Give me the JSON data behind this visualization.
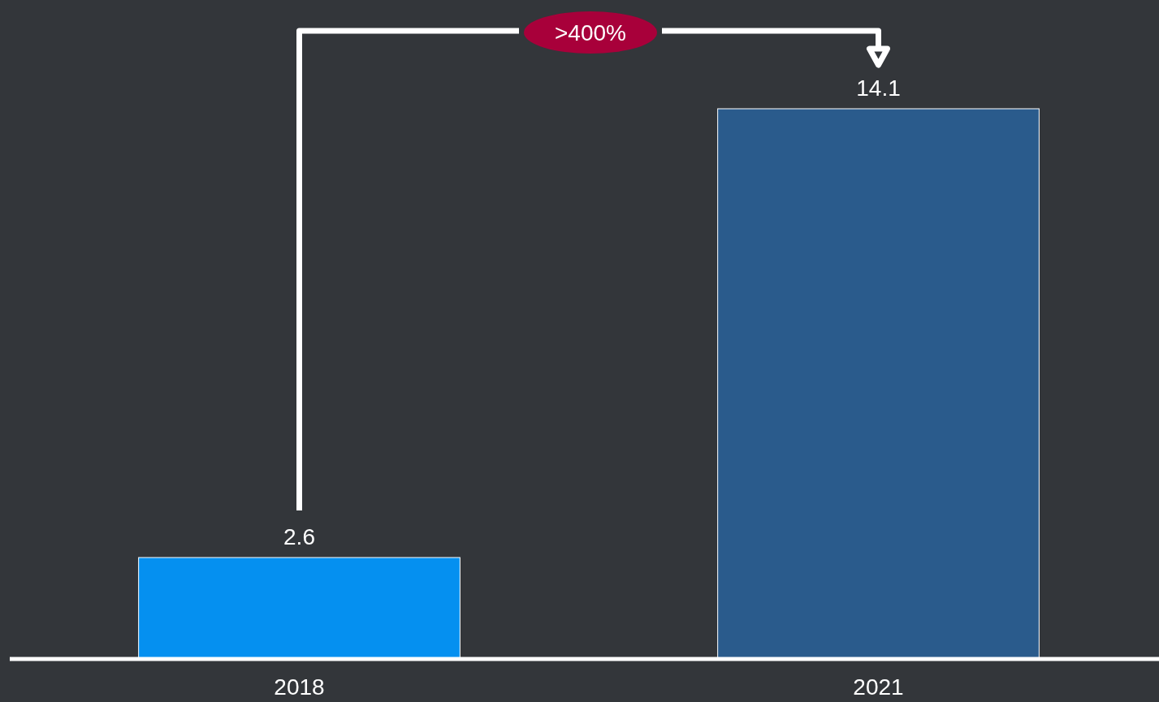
{
  "chart_data": {
    "type": "bar",
    "categories": [
      "2018",
      "2021"
    ],
    "values": [
      2.6,
      14.1
    ],
    "colors": [
      "#0590f0",
      "#2a5b8c"
    ],
    "data_labels": true,
    "annotations": [
      ">400%"
    ]
  }
}
